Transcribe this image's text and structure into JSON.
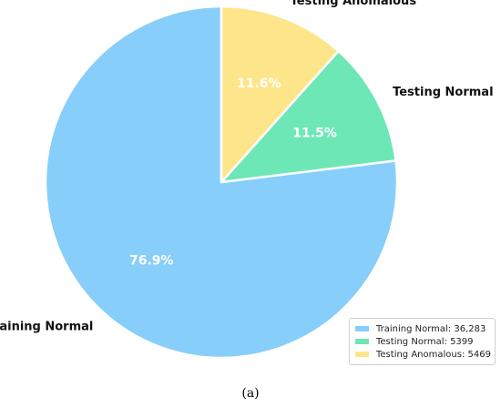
{
  "chart_data": {
    "type": "pie",
    "slices": [
      {
        "label": "Training Normal",
        "value": 36283,
        "percent_label": "76.9%",
        "legend": "Training Normal: 36,283",
        "color": "#87CEFA"
      },
      {
        "label": "Testing Normal",
        "value": 5399,
        "percent_label": "11.5%",
        "legend": "Testing Normal: 5399",
        "color": "#6EE7B7"
      },
      {
        "label": "Testing Anomalous",
        "value": 5469,
        "percent_label": "11.6%",
        "legend": "Testing Anomalous: 5469",
        "color": "#FDE68A"
      }
    ],
    "start_angle_deg": 90,
    "direction": "counterclockwise",
    "legend_position": "lower-right"
  },
  "caption": "(a)"
}
